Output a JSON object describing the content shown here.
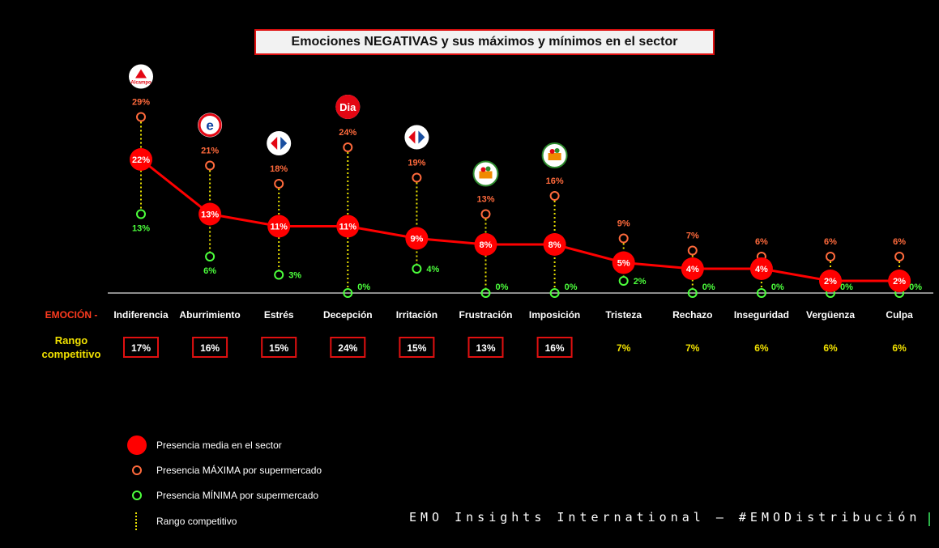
{
  "title": "Emociones NEGATIVAS y sus máximos y mínimos en el sector",
  "row_label": "EMOCIÓN -",
  "range_label_line1": "Rango",
  "range_label_line2": "competitivo",
  "footer": "EMO Insights International — #EMODistribución",
  "legend": {
    "avg": "Presencia media en el sector",
    "max": "Presencia MÁXIMA por supermercado",
    "min": "Presencia MÍNIMA por supermercado",
    "range": "Rango competitivo"
  },
  "colors": {
    "avg": "#ff0000",
    "max": "#ff6a3c",
    "min": "#4cff3c",
    "range": "#e8e000",
    "row_label": "#ff3b1f",
    "range_box_border": "#e01010",
    "range_plain_text": "#f0e000"
  },
  "logos": [
    {
      "emotion": "Indiferencia",
      "icon": "alcampo-logo-icon",
      "text": "Alcampo",
      "color": "#e30613"
    },
    {
      "emotion": "Aburrimiento",
      "icon": "eroski-logo-icon",
      "text": "e",
      "color": "#0a3ea0"
    },
    {
      "emotion": "Estrés",
      "icon": "carrefour-logo-icon",
      "text": "",
      "color": "#1a4fa0"
    },
    {
      "emotion": "Decepción",
      "icon": "dia-logo-icon",
      "text": "Dia",
      "color": "#e30613"
    },
    {
      "emotion": "Irritación",
      "icon": "carrefour-logo-icon",
      "text": "",
      "color": "#1a4fa0"
    },
    {
      "emotion": "Frustración",
      "icon": "mercadona-logo-icon",
      "text": "",
      "color": "#2e8b2e"
    },
    {
      "emotion": "Imposición",
      "icon": "mercadona-logo-icon",
      "text": "",
      "color": "#2e8b2e"
    }
  ],
  "chart_data": {
    "type": "line",
    "categories": [
      "Indiferencia",
      "Aburrimiento",
      "Estrés",
      "Decepción",
      "Irritación",
      "Frustración",
      "Imposición",
      "Tristeza",
      "Rechazo",
      "Inseguridad",
      "Vergüenza",
      "Culpa"
    ],
    "series": [
      {
        "name": "Presencia media en el sector",
        "values": [
          22,
          13,
          11,
          11,
          9,
          8,
          8,
          5,
          4,
          4,
          2,
          2
        ],
        "labels": [
          "22%",
          "13%",
          "11%",
          "11%",
          "9%",
          "8%",
          "8%",
          "5%",
          "4%",
          "4%",
          "2%",
          "2%"
        ]
      },
      {
        "name": "Presencia MÁXIMA por supermercado",
        "values": [
          29,
          21,
          18,
          24,
          19,
          13,
          16,
          9,
          7,
          6,
          6,
          6
        ],
        "labels": [
          "29%",
          "21%",
          "18%",
          "24%",
          "19%",
          "13%",
          "16%",
          "9%",
          "7%",
          "6%",
          "6%",
          "6%"
        ]
      },
      {
        "name": "Presencia MÍNIMA por supermercado",
        "values": [
          13,
          6,
          3,
          0,
          4,
          0,
          0,
          2,
          0,
          0,
          0,
          0
        ],
        "labels": [
          "13%",
          "6%",
          "3%",
          "0%",
          "4%",
          "0%",
          "0%",
          "2%",
          "0%",
          "0%",
          "0%",
          "0%"
        ]
      }
    ],
    "range": {
      "name": "Rango competitivo",
      "values": [
        17,
        16,
        15,
        24,
        15,
        13,
        16,
        7,
        7,
        6,
        6,
        6
      ],
      "labels": [
        "17%",
        "16%",
        "15%",
        "24%",
        "15%",
        "13%",
        "16%",
        "7%",
        "7%",
        "6%",
        "6%",
        "6%"
      ],
      "boxed": [
        true,
        true,
        true,
        true,
        true,
        true,
        true,
        false,
        false,
        false,
        false,
        false
      ]
    },
    "ylim": [
      0,
      29
    ],
    "grid": false
  }
}
